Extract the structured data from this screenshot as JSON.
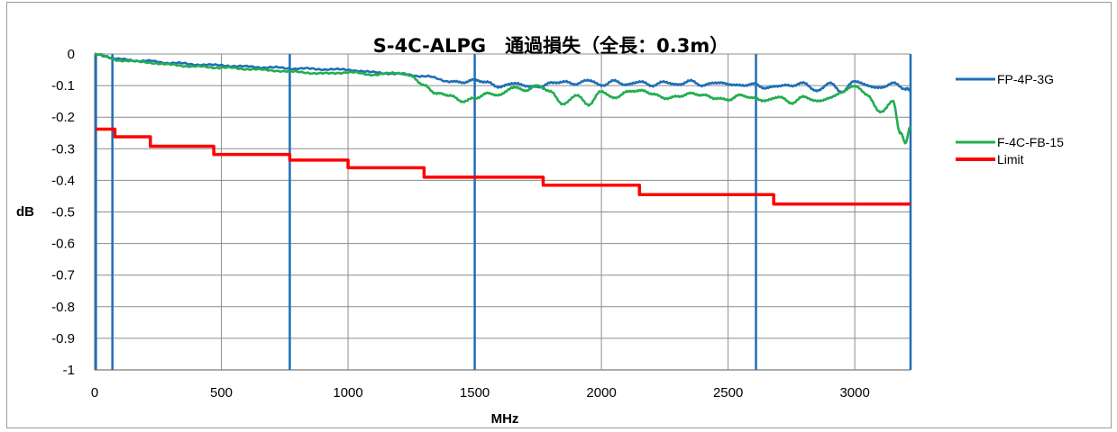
{
  "chart_data": {
    "type": "line",
    "title": "S-4C-ALPG　通過損失（全長：0.3m）",
    "xlabel": "MHz",
    "ylabel": "dB",
    "xlim": [
      0,
      3220
    ],
    "ylim": [
      -1,
      0
    ],
    "x_ticks": [
      0,
      500,
      1000,
      1500,
      2000,
      2500,
      3000
    ],
    "x_tick_labels": [
      "0",
      "500",
      "1000",
      "1500",
      "2000",
      "2500",
      "3000"
    ],
    "y_ticks": [
      0,
      -0.1,
      -0.2,
      -0.3,
      -0.4,
      -0.5,
      -0.6,
      -0.7,
      -0.8,
      -0.9,
      -1
    ],
    "y_tick_labels": [
      "0",
      "-0.1",
      "-0.2",
      "-0.3",
      "-0.4",
      "-0.5",
      "-0.6",
      "-0.7",
      "-0.8",
      "-0.9",
      "-1"
    ],
    "grid": true,
    "legend_position": "right",
    "band_markers_mhz": [
      5,
      70,
      770,
      1500,
      2610,
      3220
    ],
    "band_marker_color": "#1f6fb5",
    "series": [
      {
        "name": "FP-4P-3G",
        "color": "#1f6fb5",
        "x": [
          0,
          100,
          200,
          300,
          400,
          500,
          600,
          700,
          800,
          900,
          1000,
          1100,
          1200,
          1300,
          1400,
          1450,
          1500,
          1550,
          1600,
          1650,
          1700,
          1750,
          1800,
          1850,
          1900,
          1950,
          2000,
          2050,
          2100,
          2150,
          2200,
          2250,
          2300,
          2350,
          2400,
          2450,
          2500,
          2550,
          2600,
          2650,
          2700,
          2750,
          2800,
          2850,
          2900,
          2950,
          3000,
          3050,
          3100,
          3150,
          3200,
          3220
        ],
        "y": [
          0,
          -0.017,
          -0.022,
          -0.028,
          -0.033,
          -0.036,
          -0.04,
          -0.043,
          -0.046,
          -0.048,
          -0.05,
          -0.058,
          -0.063,
          -0.07,
          -0.086,
          -0.09,
          -0.082,
          -0.09,
          -0.105,
          -0.092,
          -0.1,
          -0.105,
          -0.092,
          -0.088,
          -0.095,
          -0.082,
          -0.1,
          -0.085,
          -0.098,
          -0.087,
          -0.1,
          -0.088,
          -0.098,
          -0.085,
          -0.1,
          -0.09,
          -0.095,
          -0.1,
          -0.095,
          -0.108,
          -0.1,
          -0.1,
          -0.092,
          -0.118,
          -0.092,
          -0.12,
          -0.085,
          -0.1,
          -0.108,
          -0.092,
          -0.11,
          -0.115
        ]
      },
      {
        "name": "F-4C-FB-15",
        "color": "#22ad50",
        "x": [
          0,
          100,
          200,
          300,
          400,
          500,
          600,
          700,
          800,
          900,
          1000,
          1100,
          1200,
          1250,
          1300,
          1350,
          1400,
          1450,
          1500,
          1550,
          1600,
          1650,
          1700,
          1750,
          1800,
          1850,
          1900,
          1950,
          2000,
          2050,
          2100,
          2150,
          2200,
          2250,
          2300,
          2350,
          2400,
          2450,
          2500,
          2550,
          2600,
          2650,
          2700,
          2750,
          2800,
          2850,
          2900,
          2950,
          3000,
          3050,
          3100,
          3150,
          3180,
          3200,
          3220
        ],
        "y": [
          0,
          -0.02,
          -0.026,
          -0.034,
          -0.04,
          -0.043,
          -0.047,
          -0.052,
          -0.057,
          -0.062,
          -0.058,
          -0.065,
          -0.06,
          -0.07,
          -0.1,
          -0.125,
          -0.13,
          -0.15,
          -0.14,
          -0.125,
          -0.13,
          -0.105,
          -0.115,
          -0.1,
          -0.12,
          -0.16,
          -0.13,
          -0.16,
          -0.118,
          -0.14,
          -0.12,
          -0.115,
          -0.125,
          -0.14,
          -0.135,
          -0.125,
          -0.13,
          -0.14,
          -0.145,
          -0.13,
          -0.14,
          -0.148,
          -0.135,
          -0.155,
          -0.135,
          -0.15,
          -0.14,
          -0.12,
          -0.1,
          -0.13,
          -0.185,
          -0.15,
          -0.25,
          -0.28,
          -0.23
        ]
      },
      {
        "name": "Limit",
        "color": "#ff0000",
        "step": true,
        "x": [
          5,
          80,
          220,
          470,
          770,
          1000,
          1300,
          1770,
          2150,
          2680,
          3220
        ],
        "y": [
          -0.238,
          -0.262,
          -0.292,
          -0.318,
          -0.336,
          -0.36,
          -0.39,
          -0.415,
          -0.445,
          -0.475,
          -0.475
        ]
      }
    ]
  }
}
